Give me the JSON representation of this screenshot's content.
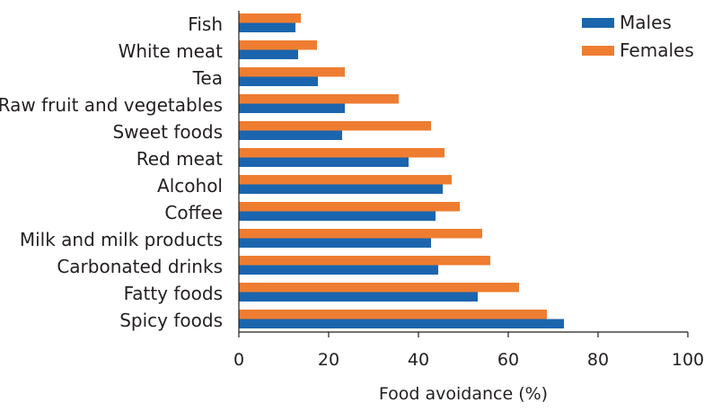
{
  "chart_data": {
    "type": "bar",
    "orientation": "horizontal",
    "title": "",
    "xlabel": "Food avoidance (%)",
    "ylabel": "",
    "xlim": [
      0,
      100
    ],
    "xticks": [
      0,
      20,
      40,
      60,
      80,
      100
    ],
    "grid": false,
    "legend_position": "top-right",
    "categories": [
      "Fish",
      "White meat",
      "Tea",
      "Raw fruit and vegetables",
      "Sweet foods",
      "Red meat",
      "Alcohol",
      "Coffee",
      "Milk and milk products",
      "Carbonated drinks",
      "Fatty foods",
      "Spicy foods"
    ],
    "series": [
      {
        "name": "Females",
        "color": "#ee7d31",
        "values": [
          13.8,
          17.4,
          23.6,
          35.6,
          42.8,
          45.8,
          47.4,
          49.2,
          54.2,
          56.0,
          62.4,
          68.6
        ]
      },
      {
        "name": "Males",
        "color": "#1b65ae",
        "values": [
          12.6,
          13.2,
          17.6,
          23.6,
          23.0,
          37.8,
          45.4,
          43.8,
          42.8,
          44.4,
          53.2,
          72.4
        ]
      }
    ],
    "legend_order": [
      "Males",
      "Females"
    ]
  }
}
